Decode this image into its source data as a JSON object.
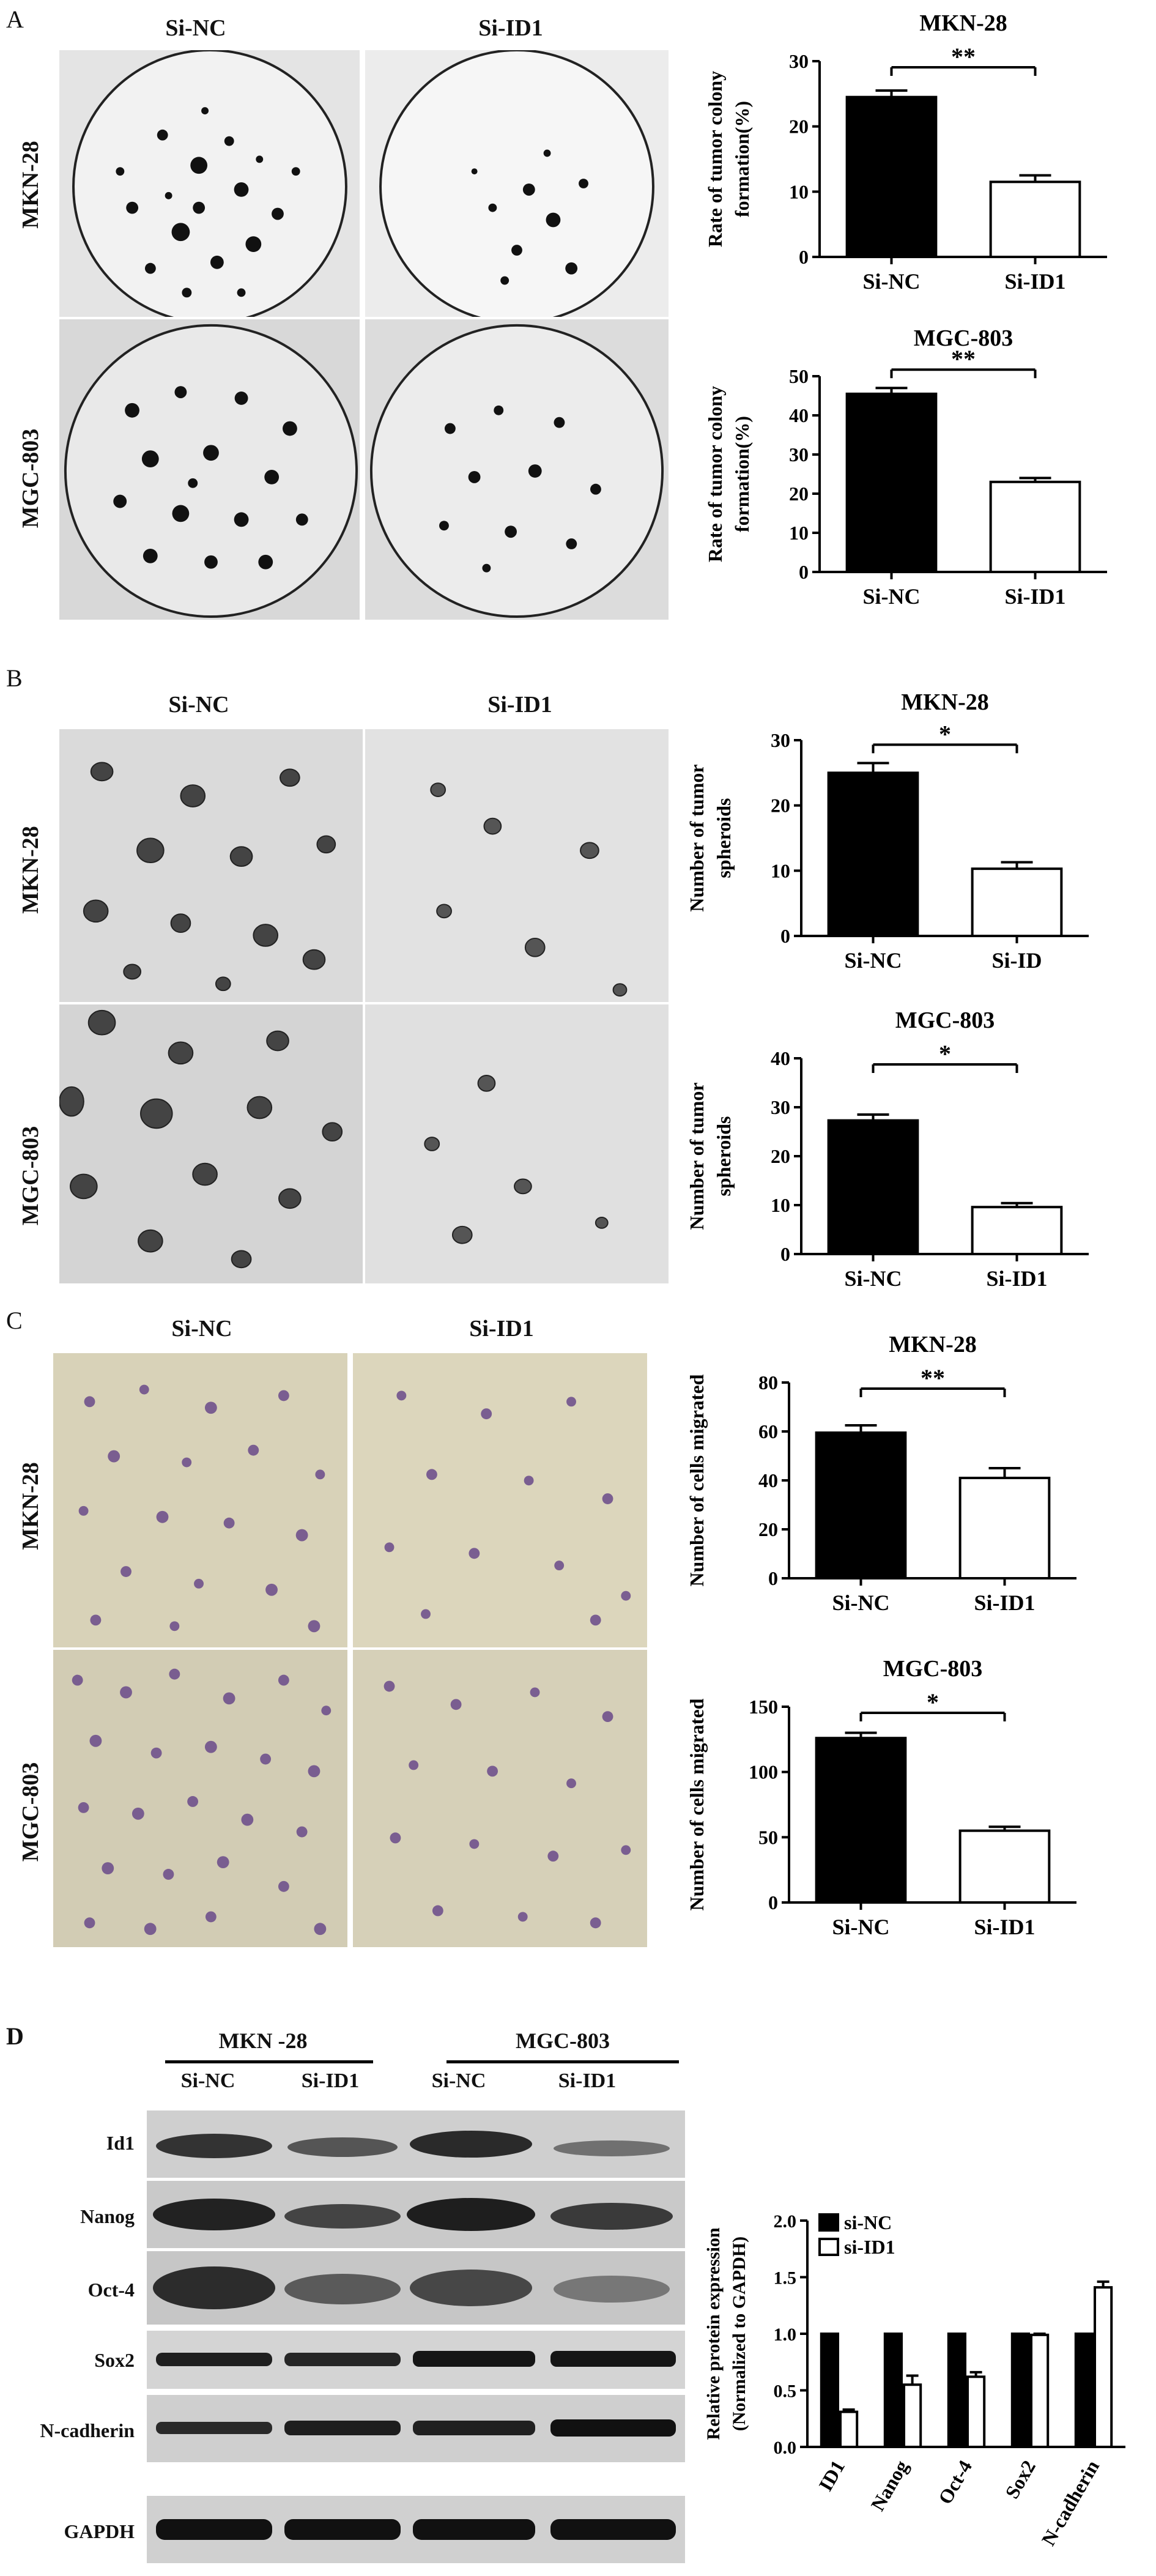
{
  "panels": {
    "A": {
      "letter": "A",
      "col_labels": [
        "Si-NC",
        "Si-ID1"
      ],
      "row_labels": [
        "MKN-28",
        "MGC-803"
      ]
    },
    "B": {
      "letter": "B",
      "col_labels": [
        "Si-NC",
        "Si-ID1"
      ],
      "row_labels": [
        "MKN-28",
        "MGC-803"
      ]
    },
    "C": {
      "letter": "C",
      "col_labels": [
        "Si-NC",
        "Si-ID1"
      ],
      "row_labels": [
        "MKN-28",
        "MGC-803"
      ]
    },
    "D": {
      "letter": "D",
      "group_labels": [
        "MKN -28",
        "MGC-803"
      ],
      "lane_labels": [
        "Si-NC",
        "Si-ID1",
        "Si-NC",
        "Si-ID1"
      ],
      "blot_rows": [
        "Id1",
        "Nanog",
        "Oct-4",
        "Sox2",
        "N-cadherin",
        "GAPDH"
      ]
    }
  },
  "chart_data": [
    {
      "id": "A1",
      "type": "bar",
      "title": "MKN-28",
      "ylabel": [
        "Rate of tumor colony",
        "formation(%)"
      ],
      "categories": [
        "Si-NC",
        "Si-ID1"
      ],
      "values": [
        24.5,
        11.5
      ],
      "errors": [
        1.0,
        1.0
      ],
      "ylim": [
        0,
        30
      ],
      "yticks": [
        "0",
        "10",
        "20",
        "30"
      ],
      "ytick_values": [
        0,
        10,
        20,
        30
      ],
      "significance": "**"
    },
    {
      "id": "A2",
      "type": "bar",
      "title": "MGC-803",
      "ylabel": [
        "Rate of tumor colony",
        "formation(%)"
      ],
      "categories": [
        "Si-NC",
        "Si-ID1"
      ],
      "values": [
        45.5,
        23.0
      ],
      "errors": [
        1.5,
        1.0
      ],
      "ylim": [
        0,
        50
      ],
      "yticks": [
        "0",
        "10",
        "20",
        "30",
        "40",
        "50"
      ],
      "ytick_values": [
        0,
        10,
        20,
        30,
        40,
        50
      ],
      "significance": "**"
    },
    {
      "id": "B1",
      "type": "bar",
      "title": "MKN-28",
      "ylabel": [
        "Number of tumor",
        "spheroids"
      ],
      "categories": [
        "Si-NC",
        "Si-ID"
      ],
      "values": [
        25.0,
        10.3
      ],
      "errors": [
        1.5,
        1.0
      ],
      "ylim": [
        0,
        30
      ],
      "yticks": [
        "0",
        "10",
        "20",
        "30"
      ],
      "ytick_values": [
        0,
        10,
        20,
        30
      ],
      "significance": "*"
    },
    {
      "id": "B2",
      "type": "bar",
      "title": "MGC-803",
      "ylabel": [
        "Number of tumor",
        "spheroids"
      ],
      "categories": [
        "Si-NC",
        "Si-ID1"
      ],
      "values": [
        27.3,
        9.6
      ],
      "errors": [
        1.2,
        0.8
      ],
      "ylim": [
        0,
        40
      ],
      "yticks": [
        "0",
        "10",
        "20",
        "30",
        "40"
      ],
      "ytick_values": [
        0,
        10,
        20,
        30,
        40
      ],
      "significance": "*"
    },
    {
      "id": "C1",
      "type": "bar",
      "title": "MKN-28",
      "ylabel": [
        "Number of cells migrated"
      ],
      "categories": [
        "Si-NC",
        "Si-ID1"
      ],
      "values": [
        59.5,
        41.0
      ],
      "errors": [
        3.0,
        4.0
      ],
      "ylim": [
        0,
        80
      ],
      "yticks": [
        "0",
        "20",
        "40",
        "60",
        "80"
      ],
      "ytick_values": [
        0,
        20,
        40,
        60,
        80
      ],
      "significance": "**"
    },
    {
      "id": "C2",
      "type": "bar",
      "title": "MGC-803",
      "ylabel": [
        "Number of cells migrated"
      ],
      "categories": [
        "Si-NC",
        "Si-ID1"
      ],
      "values": [
        126,
        55
      ],
      "errors": [
        4,
        3
      ],
      "ylim": [
        0,
        150
      ],
      "yticks": [
        "0",
        "50",
        "100",
        "150"
      ],
      "ytick_values": [
        0,
        50,
        100,
        150
      ],
      "significance": "*"
    },
    {
      "id": "D1",
      "type": "bar",
      "ylabel": [
        "Relative protein expression",
        "(Normalized to GAPDH)"
      ],
      "categories": [
        "ID1",
        "Nanog",
        "Oct-4",
        "Sox2",
        "N-cadherin"
      ],
      "series": [
        {
          "name": "si-NC",
          "values": [
            1.0,
            1.0,
            1.0,
            1.0,
            1.0
          ],
          "errors": [
            0,
            0,
            0,
            0,
            0
          ],
          "color": "#000000"
        },
        {
          "name": "si-ID1",
          "values": [
            0.31,
            0.55,
            0.62,
            0.99,
            1.41
          ],
          "errors": [
            0.02,
            0.08,
            0.04,
            0.01,
            0.05
          ],
          "color": "#ffffff"
        }
      ],
      "ylim": [
        0,
        2.0
      ],
      "yticks": [
        "0.0",
        "0.5",
        "1.0",
        "1.5",
        "2.0"
      ],
      "ytick_values": [
        0,
        0.5,
        1.0,
        1.5,
        2.0
      ],
      "legend": "top-left"
    }
  ]
}
